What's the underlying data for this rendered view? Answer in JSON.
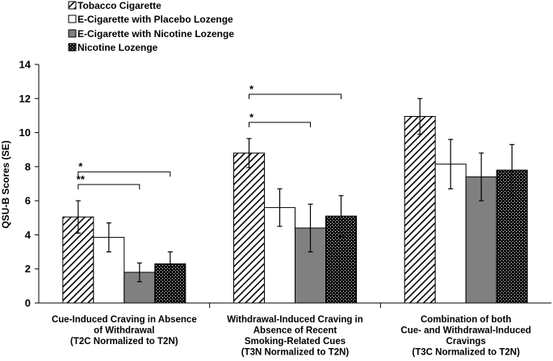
{
  "chart_data": {
    "type": "bar",
    "title": "",
    "ylabel": "QSU-B Scores (SE)",
    "xlabel": "",
    "ylim": [
      0,
      14
    ],
    "yticks": [
      0,
      2,
      4,
      6,
      8,
      10,
      12,
      14
    ],
    "grid": false,
    "legend_position": "top-left",
    "categories": [
      [
        "Cue-Induced Craving in Absence",
        "of Withdrawal",
        "(T2C Normalized to T2N)"
      ],
      [
        "Withdrawal-Induced Craving in",
        "Absence of Recent",
        "Smoking-Related Cues",
        "(T3N Normalized to T2N)"
      ],
      [
        "Combination of both",
        "Cue- and Withdrawal-Induced",
        "Cravings",
        "(T3C Normalized to T2N)"
      ]
    ],
    "series": [
      {
        "name": "Tobacco Cigarette",
        "pattern": "diagonal-hatch",
        "color": "#000000",
        "values": [
          5.05,
          8.8,
          10.95
        ],
        "errors": [
          0.95,
          0.85,
          1.05
        ]
      },
      {
        "name": "E-Cigarette with Placebo Lozenge",
        "pattern": "white",
        "color": "#ffffff",
        "values": [
          3.85,
          5.6,
          8.15
        ],
        "errors": [
          0.85,
          1.1,
          1.45
        ]
      },
      {
        "name": "E-Cigarette with Nicotine Lozenge",
        "pattern": "solid-gray",
        "color": "#808080",
        "values": [
          1.8,
          4.4,
          7.4
        ],
        "errors": [
          0.55,
          1.4,
          1.4
        ]
      },
      {
        "name": "Nicotine Lozenge",
        "pattern": "dense-dots",
        "color": "#000000",
        "values": [
          2.3,
          5.1,
          7.8
        ],
        "errors": [
          0.7,
          1.2,
          1.5
        ]
      }
    ],
    "significance": [
      {
        "group": 0,
        "from_series": 0,
        "to_series": 2,
        "bracket_y": 6.95,
        "label": "**"
      },
      {
        "group": 0,
        "from_series": 0,
        "to_series": 3,
        "bracket_y": 7.7,
        "label": "*"
      },
      {
        "group": 1,
        "from_series": 0,
        "to_series": 2,
        "bracket_y": 10.6,
        "label": "*"
      },
      {
        "group": 1,
        "from_series": 0,
        "to_series": 3,
        "bracket_y": 12.25,
        "label": "*"
      }
    ]
  }
}
